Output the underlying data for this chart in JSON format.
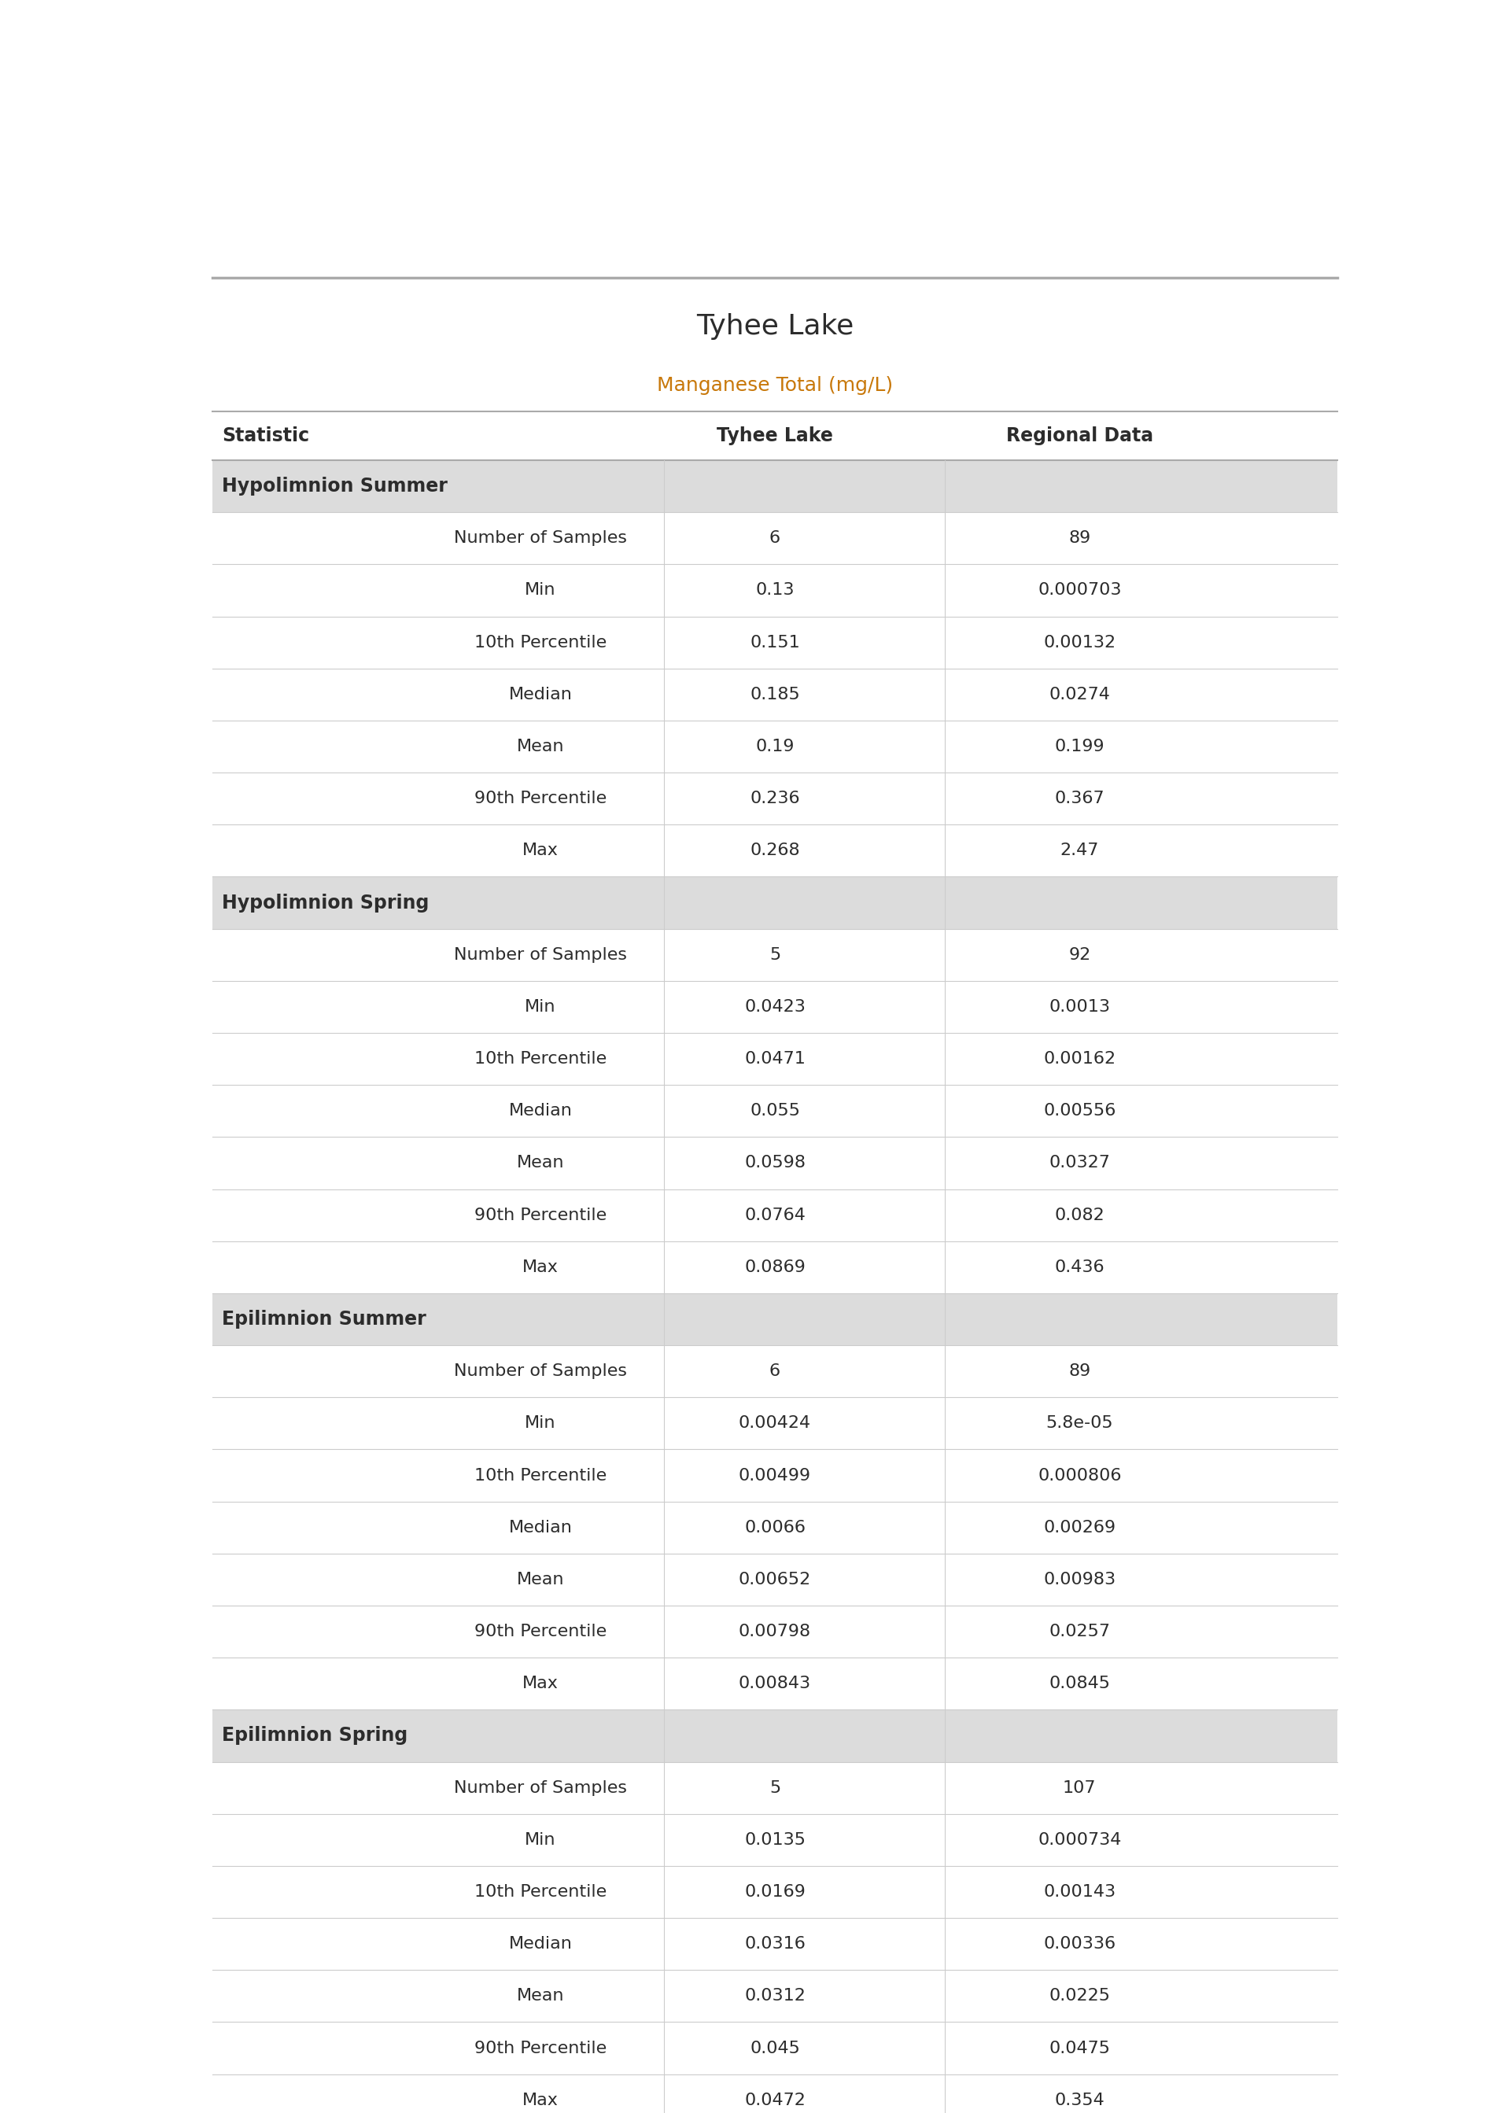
{
  "title": "Tyhee Lake",
  "subtitle": "Manganese Total (mg/L)",
  "col_headers": [
    "Statistic",
    "Tyhee Lake",
    "Regional Data"
  ],
  "sections": [
    {
      "header": "Hypolimnion Summer",
      "rows": [
        [
          "Number of Samples",
          "6",
          "89"
        ],
        [
          "Min",
          "0.13",
          "0.000703"
        ],
        [
          "10th Percentile",
          "0.151",
          "0.00132"
        ],
        [
          "Median",
          "0.185",
          "0.0274"
        ],
        [
          "Mean",
          "0.19",
          "0.199"
        ],
        [
          "90th Percentile",
          "0.236",
          "0.367"
        ],
        [
          "Max",
          "0.268",
          "2.47"
        ]
      ]
    },
    {
      "header": "Hypolimnion Spring",
      "rows": [
        [
          "Number of Samples",
          "5",
          "92"
        ],
        [
          "Min",
          "0.0423",
          "0.0013"
        ],
        [
          "10th Percentile",
          "0.0471",
          "0.00162"
        ],
        [
          "Median",
          "0.055",
          "0.00556"
        ],
        [
          "Mean",
          "0.0598",
          "0.0327"
        ],
        [
          "90th Percentile",
          "0.0764",
          "0.082"
        ],
        [
          "Max",
          "0.0869",
          "0.436"
        ]
      ]
    },
    {
      "header": "Epilimnion Summer",
      "rows": [
        [
          "Number of Samples",
          "6",
          "89"
        ],
        [
          "Min",
          "0.00424",
          "5.8e-05"
        ],
        [
          "10th Percentile",
          "0.00499",
          "0.000806"
        ],
        [
          "Median",
          "0.0066",
          "0.00269"
        ],
        [
          "Mean",
          "0.00652",
          "0.00983"
        ],
        [
          "90th Percentile",
          "0.00798",
          "0.0257"
        ],
        [
          "Max",
          "0.00843",
          "0.0845"
        ]
      ]
    },
    {
      "header": "Epilimnion Spring",
      "rows": [
        [
          "Number of Samples",
          "5",
          "107"
        ],
        [
          "Min",
          "0.0135",
          "0.000734"
        ],
        [
          "10th Percentile",
          "0.0169",
          "0.00143"
        ],
        [
          "Median",
          "0.0316",
          "0.00336"
        ],
        [
          "Mean",
          "0.0312",
          "0.0225"
        ],
        [
          "90th Percentile",
          "0.045",
          "0.0475"
        ],
        [
          "Max",
          "0.0472",
          "0.354"
        ]
      ]
    }
  ],
  "title_fontsize": 26,
  "subtitle_fontsize": 18,
  "section_header_fontsize": 17,
  "col_header_fontsize": 17,
  "data_fontsize": 16,
  "title_color": "#2c2c2c",
  "subtitle_color": "#c8780a",
  "col_header_color": "#2c2c2c",
  "data_color": "#2c2c2c",
  "section_header_color": "#2c2c2c",
  "section_bg_color": "#dcdcdc",
  "row_bg_white": "#ffffff",
  "row_line_color": "#cccccc",
  "top_line_color": "#aaaaaa",
  "col_header_line_color": "#aaaaaa"
}
